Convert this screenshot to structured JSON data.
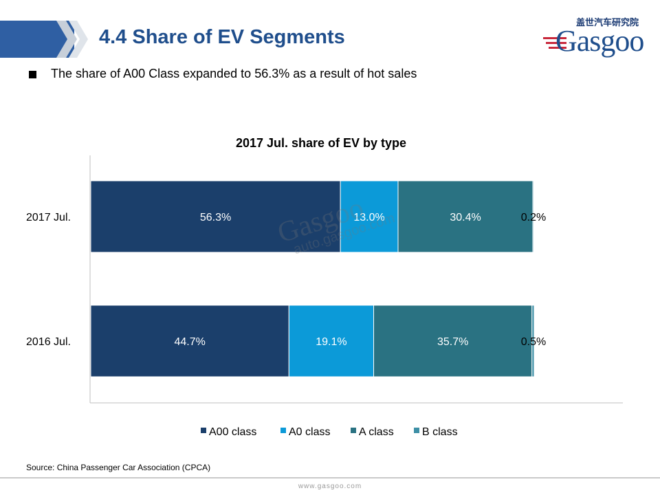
{
  "header": {
    "title": "4.4 Share of EV Segments"
  },
  "logo": {
    "cn": "盖世汽车研究院",
    "en": "Gasgoo"
  },
  "bullet": {
    "text": "The share of A00 Class expanded to 56.3% as a result of hot sales"
  },
  "chart_data": {
    "type": "bar",
    "orientation": "horizontal",
    "stacked": true,
    "title": "2017 Jul. share of EV by type",
    "categories": [
      "2017 Jul.",
      "2016 Jul."
    ],
    "series": [
      {
        "name": "A00 class",
        "values": [
          56.3,
          44.7
        ],
        "color": "#1b3f6b",
        "labels": [
          "56.3%",
          "44.7%"
        ]
      },
      {
        "name": "A0 class",
        "values": [
          13.0,
          19.1
        ],
        "color": "#0c9ad8",
        "labels": [
          "13.0%",
          "19.1%"
        ]
      },
      {
        "name": "A class",
        "values": [
          30.4,
          35.7
        ],
        "color": "#2a7282",
        "labels": [
          "30.4%",
          "35.7%"
        ]
      },
      {
        "name": "B class",
        "values": [
          0.2,
          0.5
        ],
        "color": "#3d8fa6",
        "labels": [
          "0.2%",
          "0.5%"
        ]
      }
    ],
    "xlim": [
      0,
      100
    ],
    "grid": false,
    "legend": "bottom"
  },
  "source": {
    "text": "Source: China Passenger Car Association (CPCA)"
  },
  "footer": {
    "url": "www.gasgoo.com"
  },
  "watermark": {
    "logo": "Gasgoo",
    "url": "auto.gasgoo.com"
  }
}
